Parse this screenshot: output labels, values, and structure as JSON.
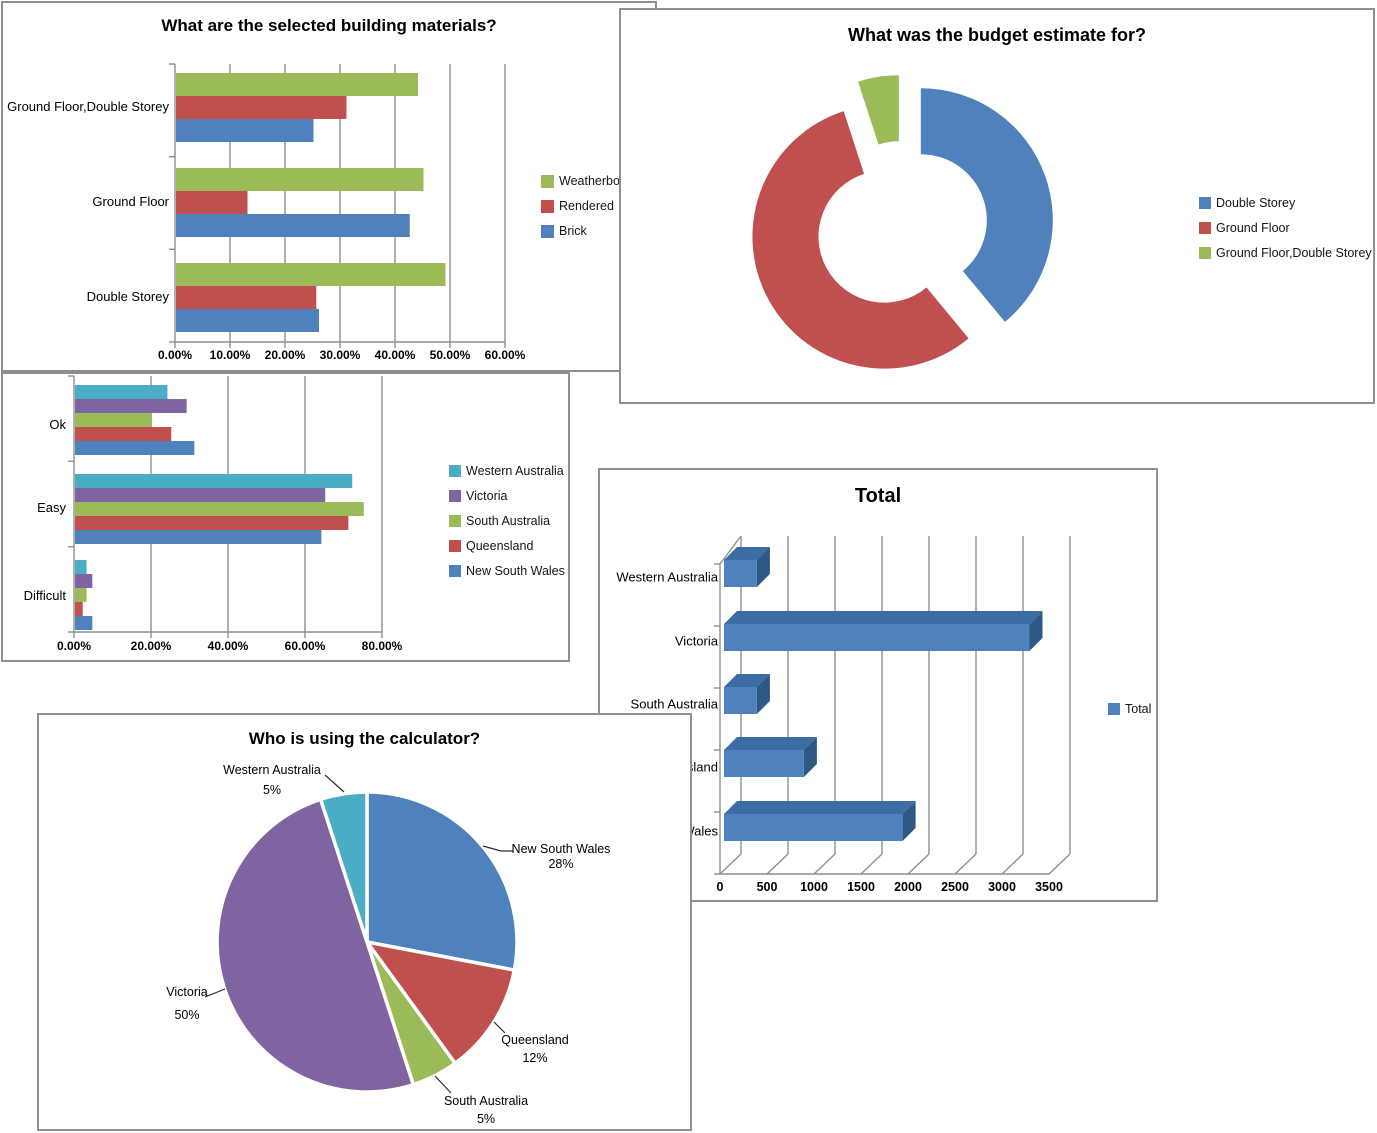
{
  "palette": {
    "blue": "#4F81BD",
    "red": "#C0504D",
    "green": "#9BBB59",
    "purple": "#8064A2",
    "teal": "#4BACC6",
    "bar3d_top": "#3D6CA5",
    "bar3d_side": "#2E5984",
    "axis_gray": "#8f8f8f",
    "grid_gray": "#8f8f8f"
  },
  "chart_data": [
    {
      "type": "bar",
      "title": "What are the selected building materials?",
      "categories": [
        "Ground Floor,Double Storey",
        "Ground Floor",
        "Double Storey"
      ],
      "series": [
        {
          "name": "Weatherboard",
          "color": "#9BBB59",
          "values": [
            44,
            45,
            49
          ]
        },
        {
          "name": "Rendered",
          "color": "#C0504D",
          "values": [
            31,
            13,
            25.5
          ]
        },
        {
          "name": "Brick",
          "color": "#4F81BD",
          "values": [
            25,
            42.5,
            26
          ]
        }
      ],
      "x_ticks": [
        "0.00%",
        "10.00%",
        "20.00%",
        "30.00%",
        "40.00%",
        "50.00%",
        "60.00%"
      ],
      "xlim": [
        0,
        60
      ],
      "grid": true,
      "legend_position": "right"
    },
    {
      "type": "doughnut",
      "title": "What was the budget estimate for?",
      "slices": [
        {
          "label": "Double Storey",
          "value": 39,
          "color": "#4F81BD"
        },
        {
          "label": "Ground Floor",
          "value": 56,
          "color": "#C0504D"
        },
        {
          "label": "Ground Floor,Double Storey",
          "value": 5,
          "color": "#9BBB59"
        }
      ],
      "legend_position": "right",
      "exploded": true
    },
    {
      "type": "bar",
      "title": "",
      "categories": [
        "Ok",
        "Easy",
        "Difficult"
      ],
      "series": [
        {
          "name": "Western Australia",
          "color": "#4BACC6",
          "values": [
            24,
            72,
            3
          ]
        },
        {
          "name": "Victoria",
          "color": "#8064A2",
          "values": [
            29,
            65,
            4.5
          ]
        },
        {
          "name": "South Australia",
          "color": "#9BBB59",
          "values": [
            20,
            75,
            3
          ]
        },
        {
          "name": "Queensland",
          "color": "#C0504D",
          "values": [
            25,
            71,
            2
          ]
        },
        {
          "name": "New South Wales",
          "color": "#4F81BD",
          "values": [
            31,
            64,
            4.5
          ]
        }
      ],
      "x_ticks": [
        "0.00%",
        "20.00%",
        "40.00%",
        "60.00%",
        "80.00%"
      ],
      "xlim": [
        0,
        80
      ],
      "grid": true,
      "legend_position": "right"
    },
    {
      "type": "bar3d",
      "title": "Total",
      "categories": [
        "Western Australia",
        "Victoria",
        "South Australia",
        "Queensland",
        "New South Wales"
      ],
      "series": [
        {
          "name": "Total",
          "color": "#4F81BD",
          "values": [
            350,
            3250,
            350,
            850,
            1900
          ]
        }
      ],
      "x_ticks": [
        "0",
        "500",
        "1000",
        "1500",
        "2000",
        "2500",
        "3000",
        "3500"
      ],
      "xlim": [
        0,
        3500
      ],
      "grid": true,
      "legend_position": "right"
    },
    {
      "type": "pie",
      "title": "Who is using the calculator?",
      "slices": [
        {
          "label": "New South Wales",
          "pct": "28%",
          "value": 28,
          "color": "#4F81BD"
        },
        {
          "label": "Queensland",
          "pct": "12%",
          "value": 12,
          "color": "#C0504D"
        },
        {
          "label": "South Australia",
          "pct": "5%",
          "value": 5,
          "color": "#9BBB59"
        },
        {
          "label": "Victoria",
          "pct": "50%",
          "value": 50,
          "color": "#8064A2"
        },
        {
          "label": "Western Australia",
          "pct": "5%",
          "value": 5,
          "color": "#4BACC6"
        }
      ],
      "labels_outside": true
    }
  ]
}
